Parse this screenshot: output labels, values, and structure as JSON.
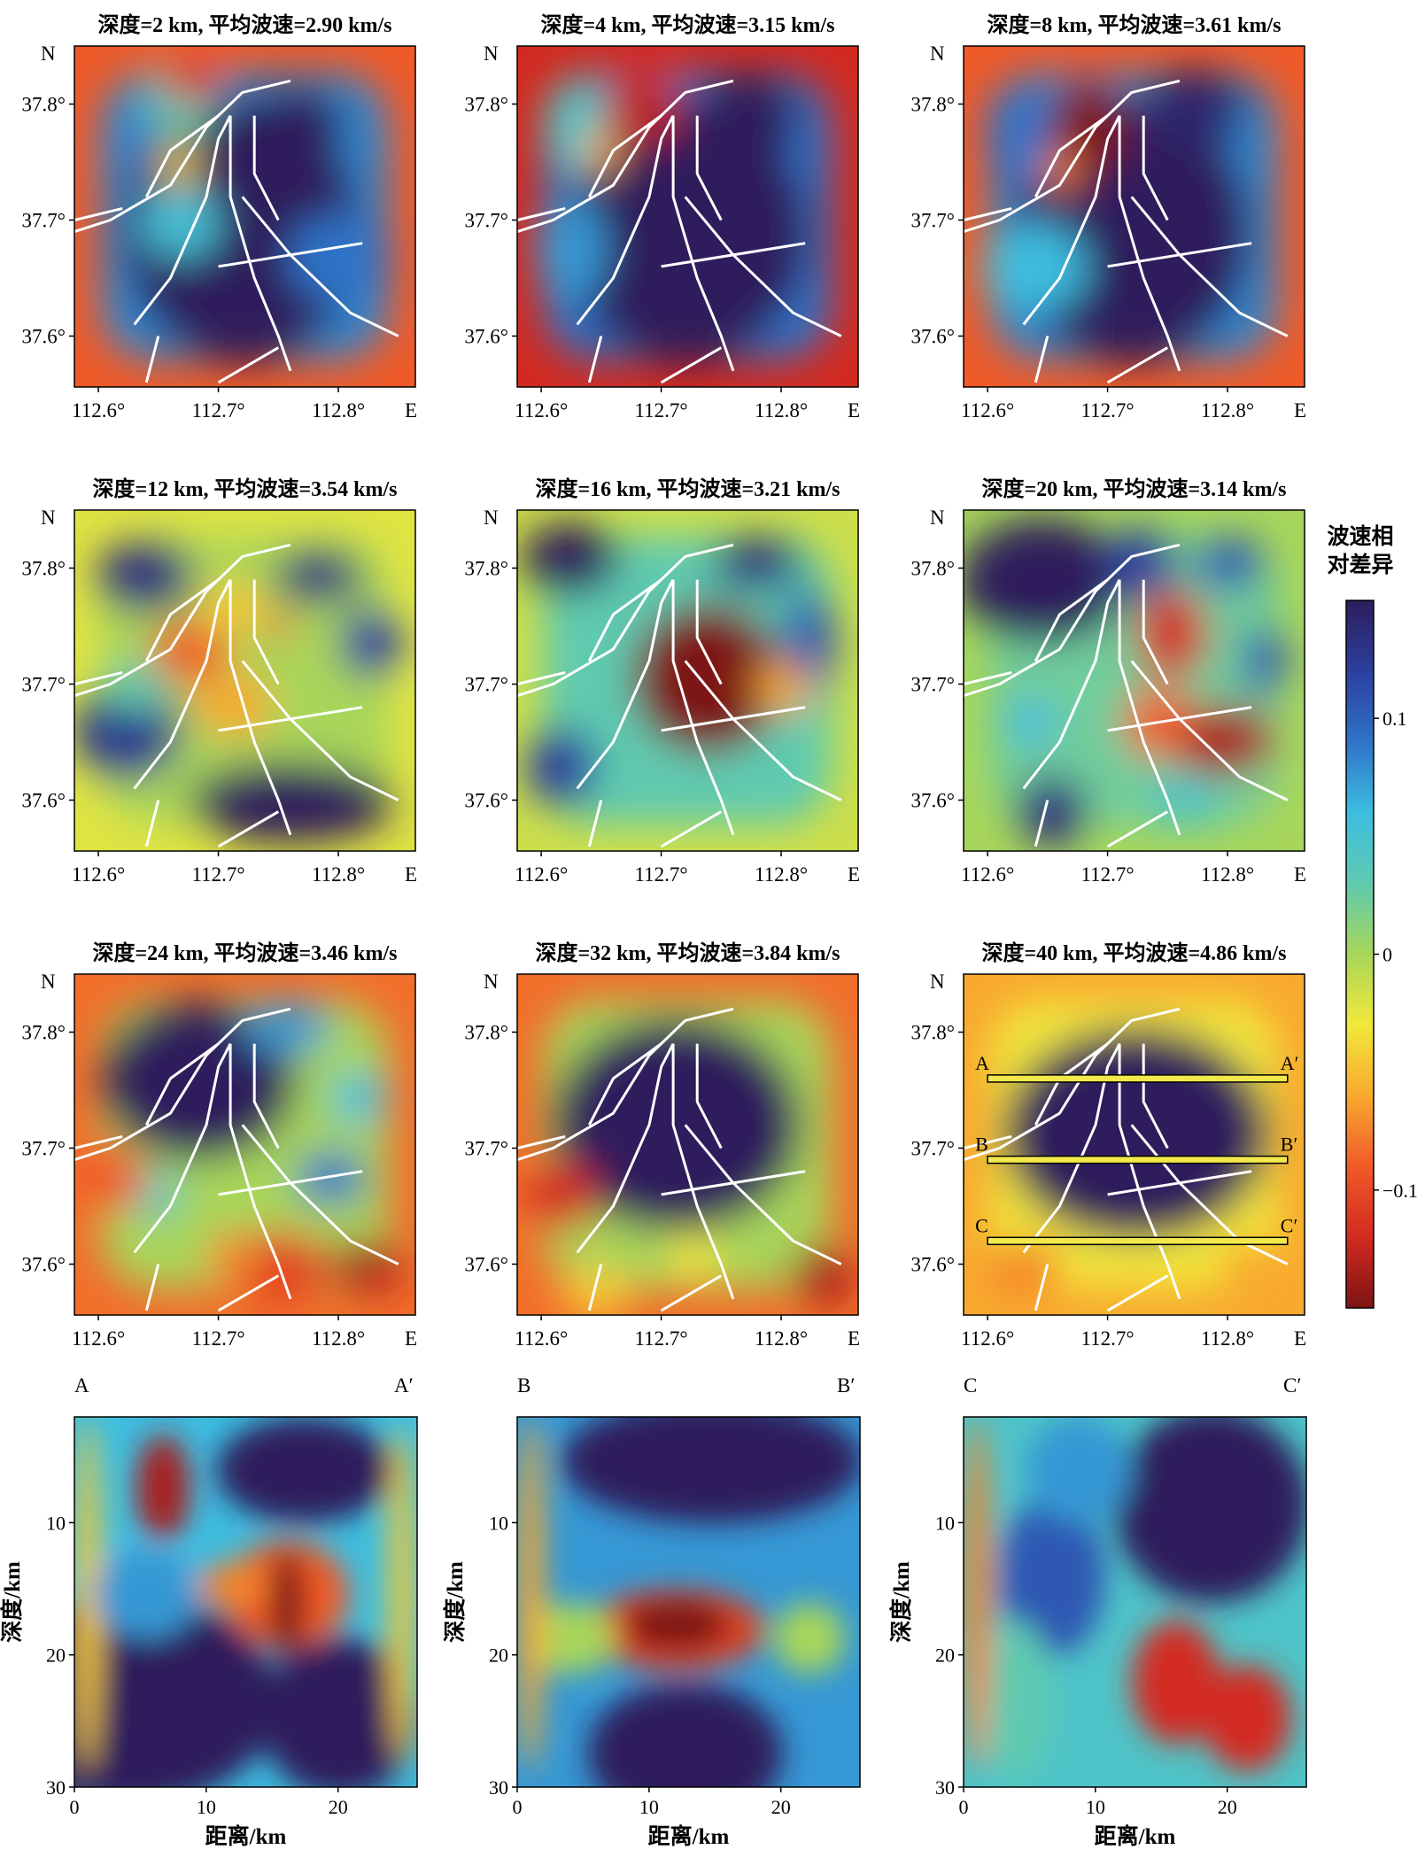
{
  "colors": {
    "colormap": [
      "#2d1e5c",
      "#2c3f9e",
      "#2f73c8",
      "#3dbde0",
      "#5fcab0",
      "#a8d65a",
      "#f2e83a",
      "#f8a92f",
      "#f05a28",
      "#d32a20",
      "#7d1414"
    ],
    "fault": "#ffffff",
    "profile_line": "#f2e84c",
    "frame": "#000000"
  },
  "chart_data": [
    {
      "type": "heatmap",
      "title": "深度=2 km, 平均波速=2.90 km/s",
      "depth_km": 2,
      "mean_velocity_km_s": 2.9,
      "xticks": [
        "112.6°",
        "112.7°",
        "112.8°"
      ],
      "yticks": [
        "37.8°",
        "37.7°",
        "37.6°"
      ],
      "north_label": "N",
      "east_label": "E",
      "xlim": [
        112.58,
        112.88
      ],
      "ylim": [
        37.56,
        37.85
      ]
    },
    {
      "type": "heatmap",
      "title": "深度=4 km, 平均波速=3.15 km/s",
      "depth_km": 4,
      "mean_velocity_km_s": 3.15,
      "xticks": [
        "112.6°",
        "112.7°",
        "112.8°"
      ],
      "yticks": [
        "37.8°",
        "37.7°",
        "37.6°"
      ],
      "north_label": "N",
      "east_label": "E",
      "xlim": [
        112.58,
        112.88
      ],
      "ylim": [
        37.56,
        37.85
      ]
    },
    {
      "type": "heatmap",
      "title": "深度=8 km, 平均波速=3.61 km/s",
      "depth_km": 8,
      "mean_velocity_km_s": 3.61,
      "xticks": [
        "112.6°",
        "112.7°",
        "112.8°"
      ],
      "yticks": [
        "37.8°",
        "37.7°",
        "37.6°"
      ],
      "north_label": "N",
      "east_label": "E",
      "xlim": [
        112.58,
        112.88
      ],
      "ylim": [
        37.56,
        37.85
      ]
    },
    {
      "type": "heatmap",
      "title": "深度=12 km, 平均波速=3.54 km/s",
      "depth_km": 12,
      "mean_velocity_km_s": 3.54,
      "xticks": [
        "112.6°",
        "112.7°",
        "112.8°"
      ],
      "yticks": [
        "37.8°",
        "37.7°",
        "37.6°"
      ],
      "north_label": "N",
      "east_label": "E",
      "xlim": [
        112.58,
        112.88
      ],
      "ylim": [
        37.56,
        37.85
      ]
    },
    {
      "type": "heatmap",
      "title": "深度=16 km, 平均波速=3.21 km/s",
      "depth_km": 16,
      "mean_velocity_km_s": 3.21,
      "xticks": [
        "112.6°",
        "112.7°",
        "112.8°"
      ],
      "yticks": [
        "37.8°",
        "37.7°",
        "37.6°"
      ],
      "north_label": "N",
      "east_label": "E",
      "xlim": [
        112.58,
        112.88
      ],
      "ylim": [
        37.56,
        37.85
      ]
    },
    {
      "type": "heatmap",
      "title": "深度=20 km, 平均波速=3.14 km/s",
      "depth_km": 20,
      "mean_velocity_km_s": 3.14,
      "xticks": [
        "112.6°",
        "112.7°",
        "112.8°"
      ],
      "yticks": [
        "37.8°",
        "37.7°",
        "37.6°"
      ],
      "north_label": "N",
      "east_label": "E",
      "xlim": [
        112.58,
        112.88
      ],
      "ylim": [
        37.56,
        37.85
      ]
    },
    {
      "type": "heatmap",
      "title": "深度=24 km, 平均波速=3.46 km/s",
      "depth_km": 24,
      "mean_velocity_km_s": 3.46,
      "xticks": [
        "112.6°",
        "112.7°",
        "112.8°"
      ],
      "yticks": [
        "37.8°",
        "37.7°",
        "37.6°"
      ],
      "north_label": "N",
      "east_label": "E",
      "xlim": [
        112.58,
        112.88
      ],
      "ylim": [
        37.56,
        37.85
      ]
    },
    {
      "type": "heatmap",
      "title": "深度=32 km, 平均波速=3.84 km/s",
      "depth_km": 32,
      "mean_velocity_km_s": 3.84,
      "xticks": [
        "112.6°",
        "112.7°",
        "112.8°"
      ],
      "yticks": [
        "37.8°",
        "37.7°",
        "37.6°"
      ],
      "north_label": "N",
      "east_label": "E",
      "xlim": [
        112.58,
        112.88
      ],
      "ylim": [
        37.56,
        37.85
      ]
    },
    {
      "type": "heatmap",
      "title": "深度=40 km, 平均波速=4.86 km/s",
      "depth_km": 40,
      "mean_velocity_km_s": 4.86,
      "xticks": [
        "112.6°",
        "112.7°",
        "112.8°"
      ],
      "yticks": [
        "37.8°",
        "37.7°",
        "37.6°"
      ],
      "north_label": "N",
      "east_label": "E",
      "xlim": [
        112.58,
        112.88
      ],
      "ylim": [
        37.56,
        37.85
      ],
      "profiles": [
        {
          "start": "A",
          "end": "A′",
          "lat": 37.76,
          "lon_range": [
            112.6,
            112.85
          ]
        },
        {
          "start": "B",
          "end": "B′",
          "lat": 37.69,
          "lon_range": [
            112.6,
            112.85
          ]
        },
        {
          "start": "C",
          "end": "C′",
          "lat": 37.62,
          "lon_range": [
            112.6,
            112.85
          ]
        }
      ]
    },
    {
      "type": "heatmap",
      "profile": "A-A′",
      "start_label": "A",
      "end_label": "A′",
      "xlabel": "距离/km",
      "ylabel": "深度/km",
      "xlim": [
        0,
        26
      ],
      "ylim": [
        30,
        2
      ],
      "xticks": [
        0,
        10,
        20
      ],
      "yticks": [
        10,
        20,
        30
      ]
    },
    {
      "type": "heatmap",
      "profile": "B-B′",
      "start_label": "B",
      "end_label": "B′",
      "xlabel": "距离/km",
      "ylabel": "深度/km",
      "xlim": [
        0,
        26
      ],
      "ylim": [
        30,
        2
      ],
      "xticks": [
        0,
        10,
        20
      ],
      "yticks": [
        10,
        20,
        30
      ]
    },
    {
      "type": "heatmap",
      "profile": "C-C′",
      "start_label": "C",
      "end_label": "C′",
      "xlabel": "距离/km",
      "ylabel": "深度/km",
      "xlim": [
        0,
        26
      ],
      "ylim": [
        30,
        2
      ],
      "xticks": [
        0,
        10,
        20
      ],
      "yticks": [
        10,
        20,
        30
      ]
    }
  ],
  "colorbar": {
    "title_line1": "波速相",
    "title_line2": "对差异",
    "range": [
      -0.15,
      0.15
    ],
    "ticks": [
      {
        "value": 0.1,
        "label": "0.1"
      },
      {
        "value": 0,
        "label": "0"
      },
      {
        "value": -0.1,
        "label": "−0.1"
      }
    ]
  }
}
